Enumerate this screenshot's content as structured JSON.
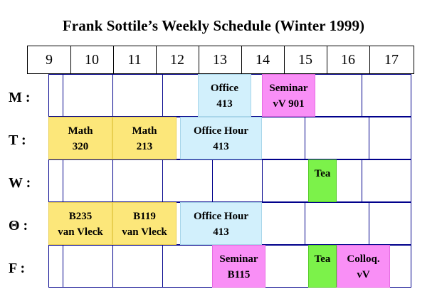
{
  "title": "Frank Sottile’s Weekly Schedule  (Winter 1999)",
  "hours": [
    "9",
    "10",
    "11",
    "12",
    "13",
    "14",
    "15",
    "16",
    "17"
  ],
  "days": [
    "M :",
    "T :",
    "W :",
    "Θ :",
    "F :"
  ],
  "events": {
    "mon_office": {
      "line1": "Office",
      "line2": "413"
    },
    "mon_seminar": {
      "line1": "Seminar",
      "line2": "vV 901"
    },
    "tue_math320": {
      "line1": "Math",
      "line2": "320"
    },
    "tue_math213": {
      "line1": "Math",
      "line2": "213"
    },
    "tue_office_hour": {
      "line1": "Office Hour",
      "line2": "413"
    },
    "wed_tea": {
      "line1": "Tea",
      "line2": ""
    },
    "thu_b235": {
      "line1": "B235",
      "line2": "van Vleck"
    },
    "thu_b119": {
      "line1": "B119",
      "line2": "van Vleck"
    },
    "thu_office_hour": {
      "line1": "Office Hour",
      "line2": "413"
    },
    "fri_seminar": {
      "line1": "Seminar",
      "line2": "B115"
    },
    "fri_tea": {
      "line1": "Tea",
      "line2": ""
    },
    "fri_colloq": {
      "line1": "Colloq.",
      "line2": "vV"
    }
  },
  "colors": {
    "class": "#fce77a",
    "office": "#d2f0fc",
    "seminar": "#f98ff6",
    "tea": "#7cf24a",
    "grid": "#00008b"
  }
}
